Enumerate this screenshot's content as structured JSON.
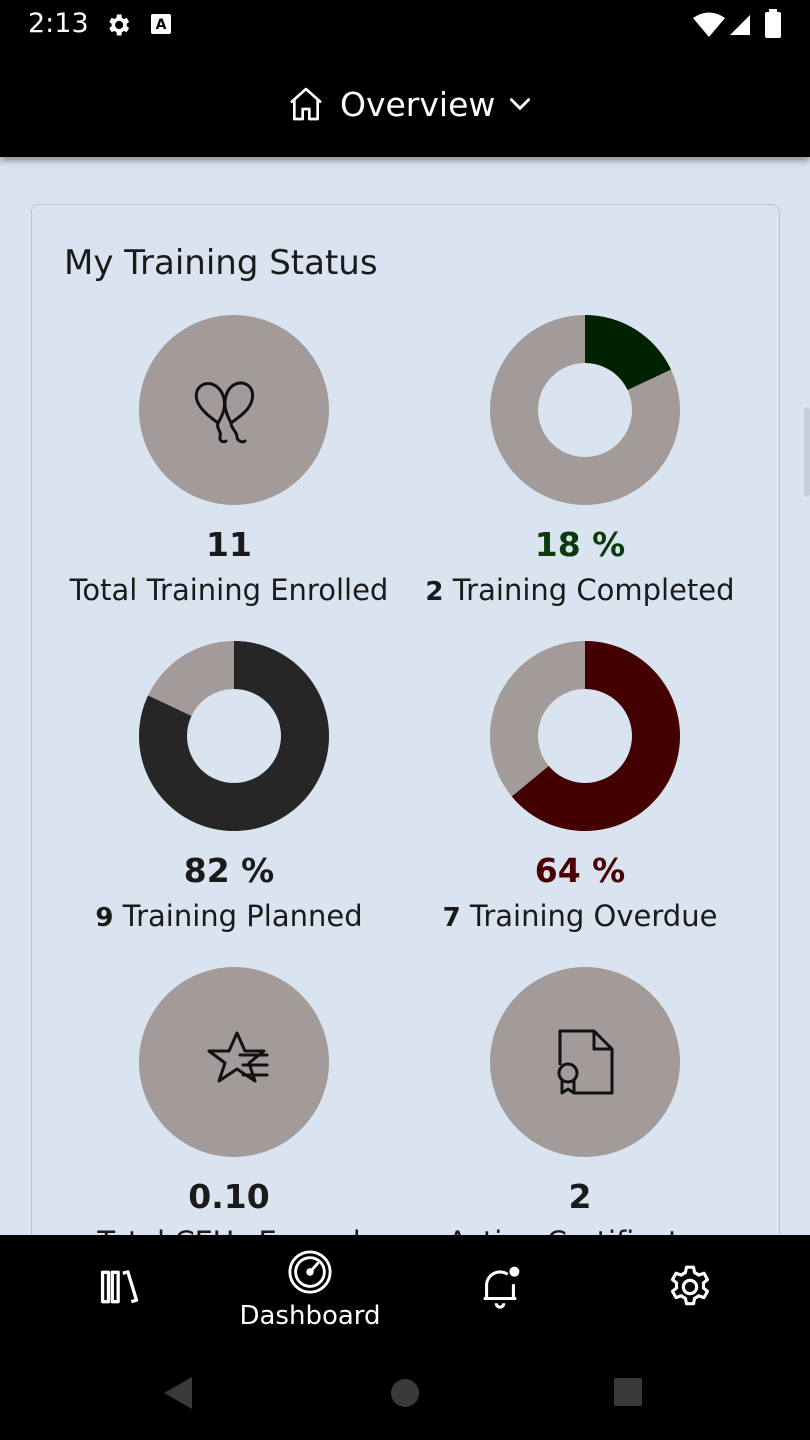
{
  "status_bar": {
    "time": "2:13"
  },
  "app_bar": {
    "title": "Overview"
  },
  "card": {
    "title": "My Training Status",
    "tiles": [
      {
        "value": "11",
        "count": "",
        "label": "Total Training Enrolled"
      },
      {
        "value": "18 %",
        "count": "2",
        "label": "Training Completed",
        "percent": 18,
        "color": "#002200"
      },
      {
        "value": "82 %",
        "count": "9",
        "label": "Training Planned",
        "percent": 82,
        "color": "#262626"
      },
      {
        "value": "64 %",
        "count": "7",
        "label": "Training Overdue",
        "percent": 64,
        "color": "#440000"
      },
      {
        "value": "0.10",
        "count": "",
        "label": "Total CEUs Earned"
      },
      {
        "value": "2",
        "count": "",
        "label": "Active Certificates"
      }
    ]
  },
  "bottom_nav": {
    "items": [
      {
        "name": "library",
        "label": ""
      },
      {
        "name": "dashboard",
        "label": "Dashboard"
      },
      {
        "name": "notifications",
        "label": ""
      },
      {
        "name": "settings",
        "label": ""
      }
    ]
  },
  "colors": {
    "ring_track": "#a29b99",
    "background": "#d9e4f0",
    "completed": "#002200",
    "overdue": "#440000",
    "completed_text": "#0b3b0b",
    "overdue_text": "#4a0000"
  }
}
